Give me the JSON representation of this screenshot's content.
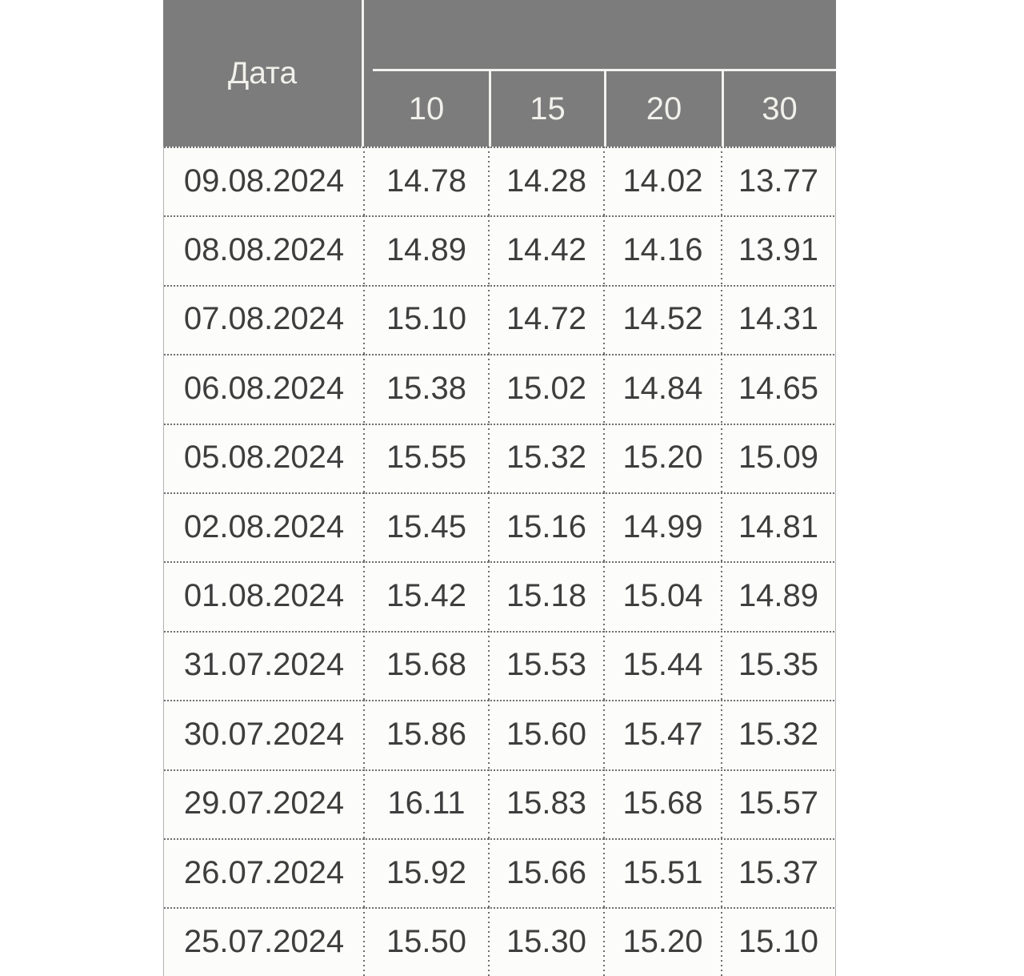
{
  "table": {
    "date_header_label": "Дата",
    "group_header_label": "",
    "maturity_columns": [
      "10",
      "15",
      "20",
      "30"
    ],
    "rows": [
      {
        "date": "09.08.2024",
        "values": [
          "14.78",
          "14.28",
          "14.02",
          "13.77"
        ]
      },
      {
        "date": "08.08.2024",
        "values": [
          "14.89",
          "14.42",
          "14.16",
          "13.91"
        ]
      },
      {
        "date": "07.08.2024",
        "values": [
          "15.10",
          "14.72",
          "14.52",
          "14.31"
        ]
      },
      {
        "date": "06.08.2024",
        "values": [
          "15.38",
          "15.02",
          "14.84",
          "14.65"
        ]
      },
      {
        "date": "05.08.2024",
        "values": [
          "15.55",
          "15.32",
          "15.20",
          "15.09"
        ]
      },
      {
        "date": "02.08.2024",
        "values": [
          "15.45",
          "15.16",
          "14.99",
          "14.81"
        ]
      },
      {
        "date": "01.08.2024",
        "values": [
          "15.42",
          "15.18",
          "15.04",
          "14.89"
        ]
      },
      {
        "date": "31.07.2024",
        "values": [
          "15.68",
          "15.53",
          "15.44",
          "15.35"
        ]
      },
      {
        "date": "30.07.2024",
        "values": [
          "15.86",
          "15.60",
          "15.47",
          "15.32"
        ]
      },
      {
        "date": "29.07.2024",
        "values": [
          "16.11",
          "15.83",
          "15.68",
          "15.57"
        ]
      },
      {
        "date": "26.07.2024",
        "values": [
          "15.92",
          "15.66",
          "15.51",
          "15.37"
        ]
      },
      {
        "date": "25.07.2024",
        "values": [
          "15.50",
          "15.30",
          "15.20",
          "15.10"
        ]
      }
    ]
  },
  "chart_data": {
    "type": "table",
    "title": "",
    "columns": [
      "Дата",
      "10",
      "15",
      "20",
      "30"
    ],
    "rows": [
      [
        "09.08.2024",
        14.78,
        14.28,
        14.02,
        13.77
      ],
      [
        "08.08.2024",
        14.89,
        14.42,
        14.16,
        13.91
      ],
      [
        "07.08.2024",
        15.1,
        14.72,
        14.52,
        14.31
      ],
      [
        "06.08.2024",
        15.38,
        15.02,
        14.84,
        14.65
      ],
      [
        "05.08.2024",
        15.55,
        15.32,
        15.2,
        15.09
      ],
      [
        "02.08.2024",
        15.45,
        15.16,
        14.99,
        14.81
      ],
      [
        "01.08.2024",
        15.42,
        15.18,
        15.04,
        14.89
      ],
      [
        "31.07.2024",
        15.68,
        15.53,
        15.44,
        15.35
      ],
      [
        "30.07.2024",
        15.86,
        15.6,
        15.47,
        15.32
      ],
      [
        "29.07.2024",
        16.11,
        15.83,
        15.68,
        15.57
      ],
      [
        "26.07.2024",
        15.92,
        15.66,
        15.51,
        15.37
      ],
      [
        "25.07.2024",
        15.5,
        15.3,
        15.2,
        15.1
      ]
    ]
  },
  "colors": {
    "header-bg": "#7c7c7c",
    "header-text": "#f1f0eb",
    "header-divider": "#f2f2f0",
    "body-bg": "#fcfcfb",
    "body-text": "#3e3e3e",
    "dot-color": "#6e6e6e",
    "side-border": "#b3b3b3"
  }
}
